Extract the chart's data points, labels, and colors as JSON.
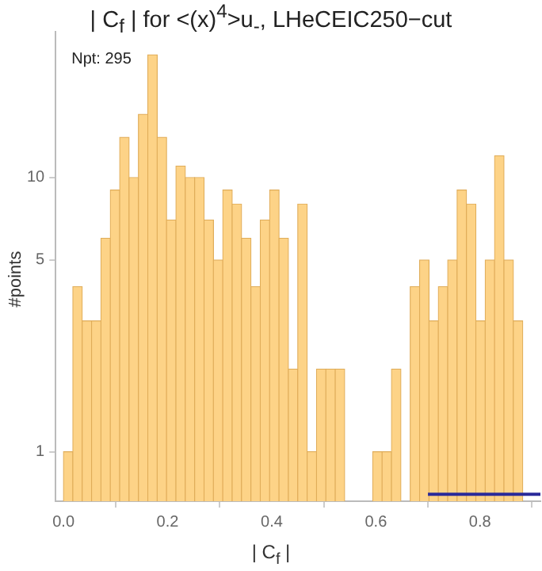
{
  "chart_data": {
    "type": "histogram",
    "title": "| C$_{f}$ | for <(x)$^{4}$>u$_{-}$, LHeCEIC250−cut",
    "xlabel": "| C$_{f}$ |",
    "ylabel": "#points",
    "bins": [
      0,
      0.018,
      0.036,
      0.054,
      0.072,
      0.09,
      0.108,
      0.126,
      0.144,
      0.162,
      0.18,
      0.198,
      0.216,
      0.234,
      0.252,
      0.27,
      0.288,
      0.306,
      0.324,
      0.342,
      0.36,
      0.378,
      0.396,
      0.414,
      0.432,
      0.45,
      0.468,
      0.486,
      0.504,
      0.522,
      0.54,
      0.558,
      0.576,
      0.594,
      0.612,
      0.63,
      0.648,
      0.666,
      0.684,
      0.702,
      0.72,
      0.738,
      0.756,
      0.774,
      0.792,
      0.81,
      0.828,
      0.846,
      0.864,
      0.882
    ],
    "series": [
      {
        "color": "#fdd387",
        "values": [
          1,
          4,
          3,
          3,
          6,
          9,
          14,
          10,
          17,
          28,
          14,
          7,
          11,
          10,
          10,
          7,
          5,
          9,
          8,
          6,
          4,
          7,
          9,
          6,
          2,
          8,
          1,
          2,
          2,
          2,
          null,
          null,
          null,
          1,
          1,
          2,
          null,
          4,
          5,
          3,
          4,
          5,
          9,
          8,
          3,
          5,
          12,
          5,
          3
        ]
      },
      {
        "type": "line",
        "color": "#2a2a9a",
        "x": [
          0.7,
          0.916
        ],
        "values": [
          0.7,
          0.7
        ]
      }
    ],
    "log": "y",
    "xlim": [
      -0.015,
      0.916
    ],
    "ylim": [
      0.66,
      34
    ],
    "xticks": [
      {
        "value": 0,
        "label": "0.0"
      },
      {
        "value": 0.2,
        "label": "0.2"
      },
      {
        "value": 0.4,
        "label": "0.4"
      },
      {
        "value": 0.6,
        "label": "0.6"
      },
      {
        "value": 0.8,
        "label": "0.8"
      }
    ],
    "yticks": [
      1,
      5,
      10
    ],
    "grid": false,
    "legend": false,
    "marker": "none",
    "annotations": [
      "Npt: 295"
    ]
  }
}
